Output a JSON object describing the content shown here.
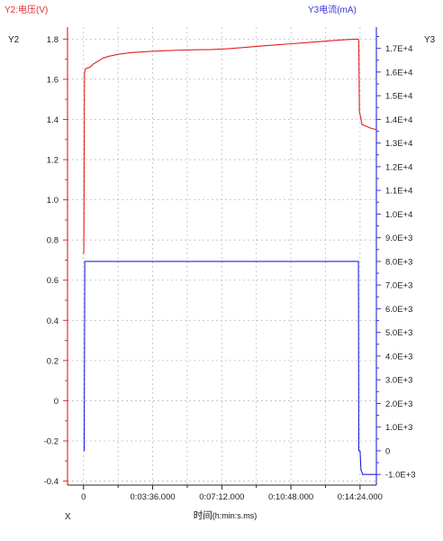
{
  "chart_data": {
    "type": "line",
    "left_axis_title": "Y2:电压(V)",
    "right_axis_title": "Y3电流(mA)",
    "left_axis_name": "Y2",
    "right_axis_name": "Y3",
    "x_axis_name": "X",
    "xlabel": "时间",
    "xlabel_unit": "(h:min:s.ms)",
    "grid": true,
    "xlim": [
      -50,
      915
    ],
    "x_ticks": [
      {
        "value": 0,
        "label": "0"
      },
      {
        "value": 216,
        "label": "0:03:36.000"
      },
      {
        "value": 432,
        "label": "0:07:12.000"
      },
      {
        "value": 648,
        "label": "0:10:48.000"
      },
      {
        "value": 864,
        "label": "0:14:24.000"
      }
    ],
    "y_left_lim": [
      -0.42,
      1.86
    ],
    "y_left_ticks": [
      -0.4,
      -0.2,
      0,
      0.2,
      0.4,
      0.6,
      0.8,
      1.0,
      1.2,
      1.4,
      1.6,
      1.8
    ],
    "y_left_tick_labels": [
      "-0.4",
      "-0.2",
      "0",
      "0.2",
      "0.4",
      "0.6",
      "0.8",
      "1.0",
      "1.2",
      "1.4",
      "1.6",
      "1.8"
    ],
    "y_right_lim": [
      -1450,
      17900
    ],
    "y_right_ticks": [
      -1000,
      0,
      1000,
      2000,
      3000,
      4000,
      5000,
      6000,
      7000,
      8000,
      9000,
      10000,
      11000,
      12000,
      13000,
      14000,
      15000,
      16000,
      17000
    ],
    "y_right_tick_labels": [
      "-1.0E+3",
      "0",
      "1.0E+3",
      "2.0E+3",
      "3.0E+3",
      "4.0E+3",
      "5.0E+3",
      "6.0E+3",
      "7.0E+3",
      "8.0E+3",
      "9.0E+3",
      "1.0E+4",
      "1.1E+4",
      "1.2E+4",
      "1.3E+4",
      "1.4E+4",
      "1.5E+4",
      "1.6E+4",
      "1.7E+4"
    ],
    "series": [
      {
        "axis": "left",
        "color": "#e02020",
        "points": [
          [
            0,
            0.73
          ],
          [
            1,
            0.75
          ],
          [
            3,
            1.63
          ],
          [
            5,
            1.65
          ],
          [
            10,
            1.655
          ],
          [
            20,
            1.66
          ],
          [
            30,
            1.675
          ],
          [
            45,
            1.69
          ],
          [
            60,
            1.705
          ],
          [
            80,
            1.715
          ],
          [
            110,
            1.725
          ],
          [
            150,
            1.733
          ],
          [
            200,
            1.738
          ],
          [
            250,
            1.742
          ],
          [
            300,
            1.745
          ],
          [
            350,
            1.747
          ],
          [
            400,
            1.748
          ],
          [
            450,
            1.752
          ],
          [
            500,
            1.758
          ],
          [
            550,
            1.765
          ],
          [
            600,
            1.771
          ],
          [
            650,
            1.777
          ],
          [
            700,
            1.783
          ],
          [
            750,
            1.789
          ],
          [
            800,
            1.795
          ],
          [
            840,
            1.799
          ],
          [
            859,
            1.8
          ],
          [
            860,
            1.78
          ],
          [
            862,
            1.44
          ],
          [
            866,
            1.41
          ],
          [
            870,
            1.375
          ],
          [
            885,
            1.365
          ],
          [
            900,
            1.355
          ],
          [
            915,
            1.35
          ]
        ]
      },
      {
        "axis": "right",
        "color": "#2020e0",
        "points": [
          [
            0,
            0
          ],
          [
            2,
            0
          ],
          [
            4,
            8000
          ],
          [
            859,
            8000
          ],
          [
            860,
            0
          ],
          [
            864,
            0
          ],
          [
            867,
            -800
          ],
          [
            872,
            -1000
          ],
          [
            915,
            -1000
          ]
        ]
      }
    ]
  }
}
